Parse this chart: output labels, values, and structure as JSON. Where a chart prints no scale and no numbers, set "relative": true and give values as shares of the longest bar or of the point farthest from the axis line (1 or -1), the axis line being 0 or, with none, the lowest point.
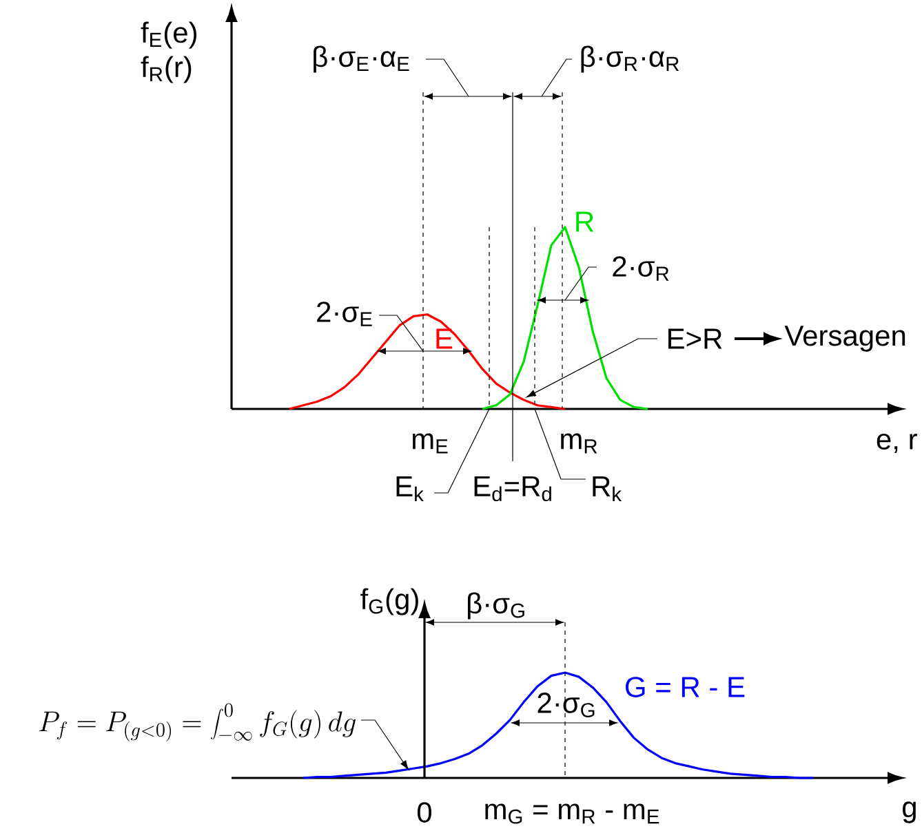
{
  "chart_data": [
    {
      "type": "line",
      "relative": true,
      "ylabel": "f$_{E}$(e) f$_{R}$(r)",
      "xlabel": "e, r",
      "categories": [
        null,
        null,
        null,
        null,
        null,
        null,
        null,
        null,
        null,
        null,
        null,
        null,
        null,
        null,
        null,
        null,
        null,
        null,
        null,
        null,
        null,
        null,
        null,
        null,
        null,
        null,
        null,
        null,
        null,
        null,
        null,
        null,
        null,
        null,
        null,
        null,
        null,
        null,
        null,
        null,
        null,
        null,
        null,
        null,
        null,
        null,
        null,
        null,
        null
      ],
      "series": [
        {
          "name": "E",
          "color": "#ff0000",
          "values": [
            null,
            null,
            null,
            null,
            0.0,
            0.02,
            0.04,
            0.07,
            0.12,
            0.19,
            0.28,
            0.37,
            0.46,
            0.51,
            0.52,
            0.48,
            0.41,
            0.32,
            0.22,
            0.14,
            0.09,
            0.05,
            0.02,
            0.01,
            0.0,
            null,
            null,
            null,
            null,
            null,
            null,
            null,
            null,
            null,
            null,
            null,
            null,
            null,
            null,
            null,
            null,
            null,
            null,
            null,
            null,
            null,
            null,
            null,
            null
          ]
        },
        {
          "name": "R",
          "color": "#00e000",
          "values": [
            null,
            null,
            null,
            null,
            null,
            null,
            null,
            null,
            null,
            null,
            null,
            null,
            null,
            null,
            null,
            null,
            null,
            null,
            0.0,
            0.02,
            0.08,
            0.26,
            0.57,
            0.9,
            1.0,
            0.78,
            0.43,
            0.17,
            0.05,
            0.01,
            0.0,
            null,
            null,
            null,
            null,
            null,
            null,
            null,
            null,
            null,
            null,
            null,
            null,
            null,
            null,
            null,
            null,
            null,
            null
          ]
        }
      ],
      "annotations": [
        "β·σ$_{E}$·α$_{E}$",
        "β·σ$_{R}$·α$_{R}$",
        "2·σ$_{E}$",
        "2·σ$_{R}$",
        "E>R",
        "Versagen",
        "m$_{E}$",
        "m$_{R}$",
        "E$_{k}$",
        "E$_{d}$=R$_{d}$",
        "R$_{k}$"
      ]
    },
    {
      "type": "line",
      "relative": true,
      "ylabel": "f$_{G}$(g)",
      "xlabel": "g",
      "categories": [
        null,
        null,
        null,
        null,
        null,
        null,
        null,
        null,
        null,
        null,
        null,
        null,
        null,
        null,
        null,
        null,
        null,
        null,
        null,
        null,
        null,
        null,
        null,
        null,
        null,
        null,
        null,
        null,
        null,
        null,
        null,
        null,
        null,
        null,
        null,
        null,
        null,
        null,
        null,
        null,
        null,
        null,
        null,
        null,
        null,
        null,
        null,
        null,
        null
      ],
      "series": [
        {
          "name": "G = R - E",
          "color": "#0000ff",
          "values": [
            null,
            null,
            null,
            null,
            null,
            0.0,
            0.01,
            0.01,
            0.02,
            0.03,
            0.04,
            0.05,
            0.07,
            0.09,
            0.11,
            0.14,
            0.18,
            0.23,
            0.31,
            0.42,
            0.55,
            0.72,
            0.87,
            0.97,
            1.0,
            0.96,
            0.86,
            0.72,
            0.54,
            0.38,
            0.27,
            0.19,
            0.14,
            0.11,
            0.08,
            0.06,
            0.04,
            0.03,
            0.02,
            0.01,
            0.01,
            0.0,
            0.0,
            null,
            null,
            null,
            null,
            null,
            null
          ]
        }
      ],
      "annotations": [
        "β·σ$_{G}$",
        "2·σ$_{G}$",
        "0",
        "m$_{G}$ = m$_{R}$ - m$_{E}$",
        "P_f = P_{(g<0)} = \\int_{-\\infty}^{0} f_G(g)\\,dg"
      ]
    }
  ]
}
